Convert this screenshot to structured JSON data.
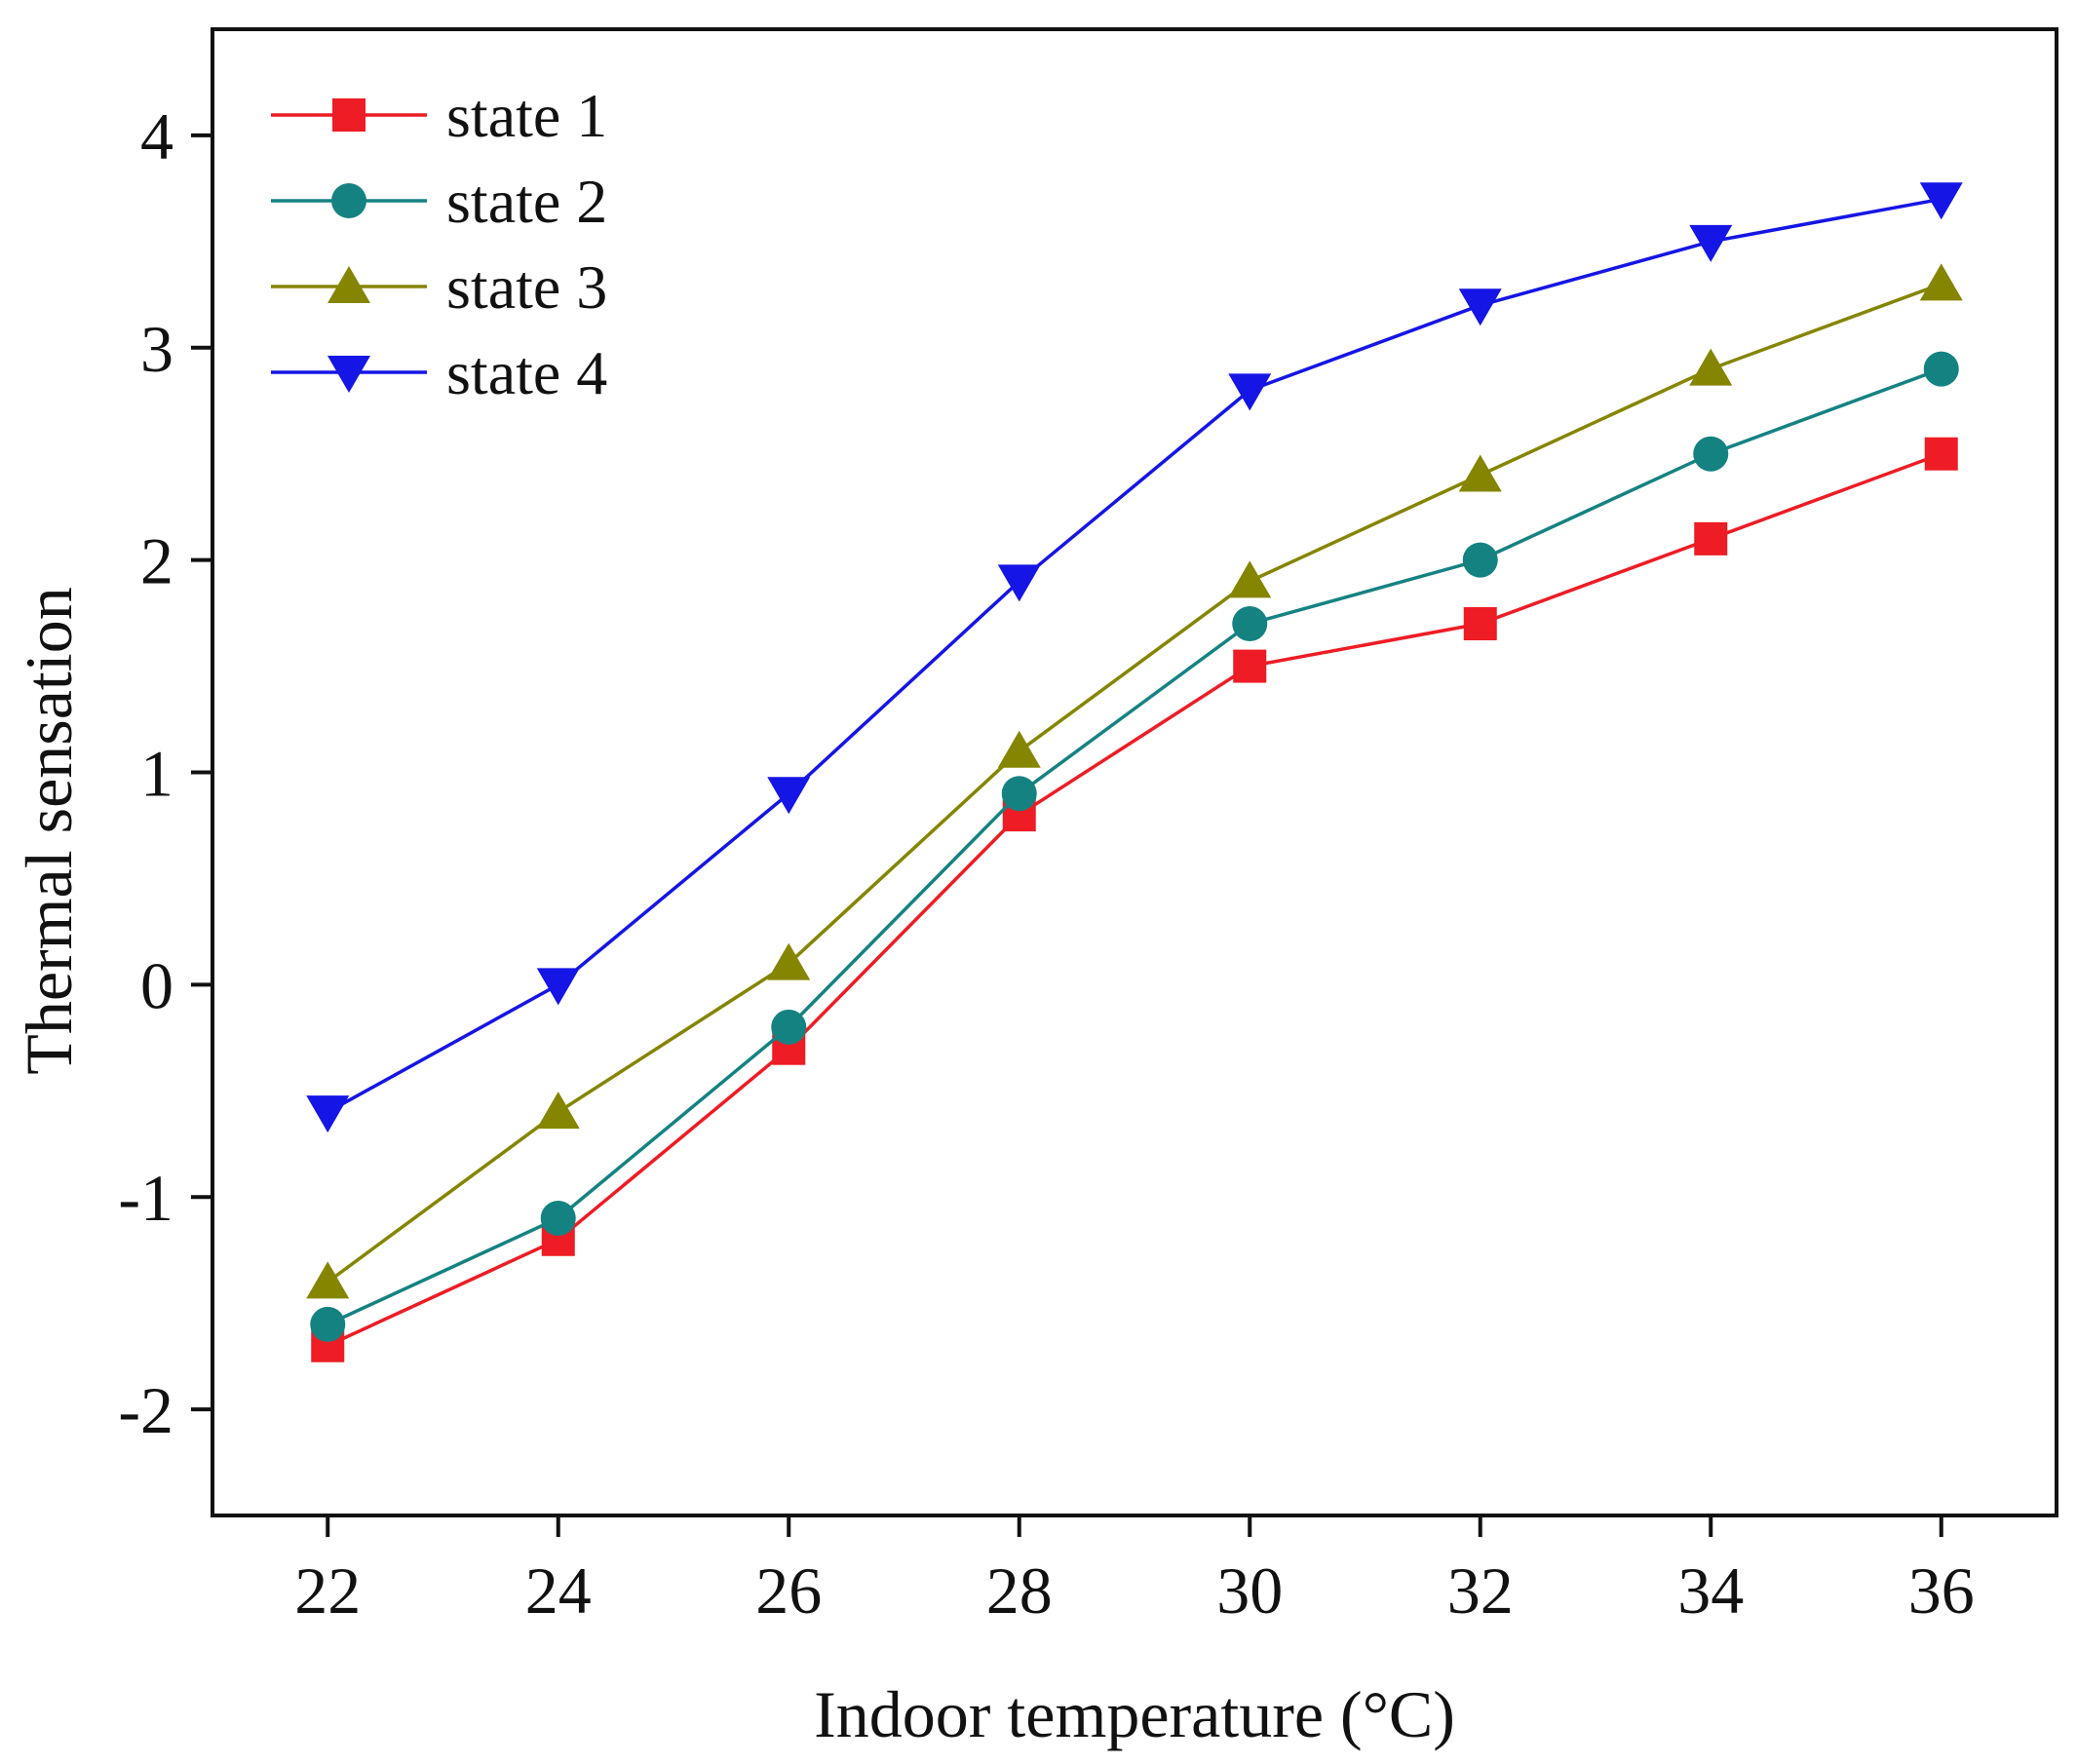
{
  "chart_data": {
    "type": "line",
    "title": "",
    "xlabel": "Indoor temperature (°C)",
    "ylabel": "Thermal sensation",
    "x": [
      22,
      24,
      26,
      28,
      30,
      32,
      34,
      36
    ],
    "xlim": [
      21,
      37
    ],
    "ylim": [
      -2.5,
      4.5
    ],
    "xticks": [
      "22",
      "24",
      "26",
      "28",
      "30",
      "32",
      "34",
      "36"
    ],
    "yticks": [
      "-2",
      "-1",
      "0",
      "1",
      "2",
      "3",
      "4"
    ],
    "grid": false,
    "legend_position": "top-left",
    "series": [
      {
        "name": "state 1",
        "color": "#ee1c24",
        "marker": "square",
        "values": [
          -1.7,
          -1.2,
          -0.3,
          0.8,
          1.5,
          1.7,
          2.1,
          2.5
        ]
      },
      {
        "name": "state 2",
        "color": "#158282",
        "marker": "circle",
        "values": [
          -1.6,
          -1.1,
          -0.2,
          0.9,
          1.7,
          2.0,
          2.5,
          2.9
        ]
      },
      {
        "name": "state 3",
        "color": "#858500",
        "marker": "triangle-up",
        "values": [
          -1.4,
          -0.6,
          0.1,
          1.1,
          1.9,
          2.4,
          2.9,
          3.3
        ]
      },
      {
        "name": "state 4",
        "color": "#1515e6",
        "marker": "triangle-down",
        "values": [
          -0.6,
          0.0,
          0.9,
          1.9,
          2.8,
          3.2,
          3.5,
          3.7
        ]
      }
    ]
  }
}
